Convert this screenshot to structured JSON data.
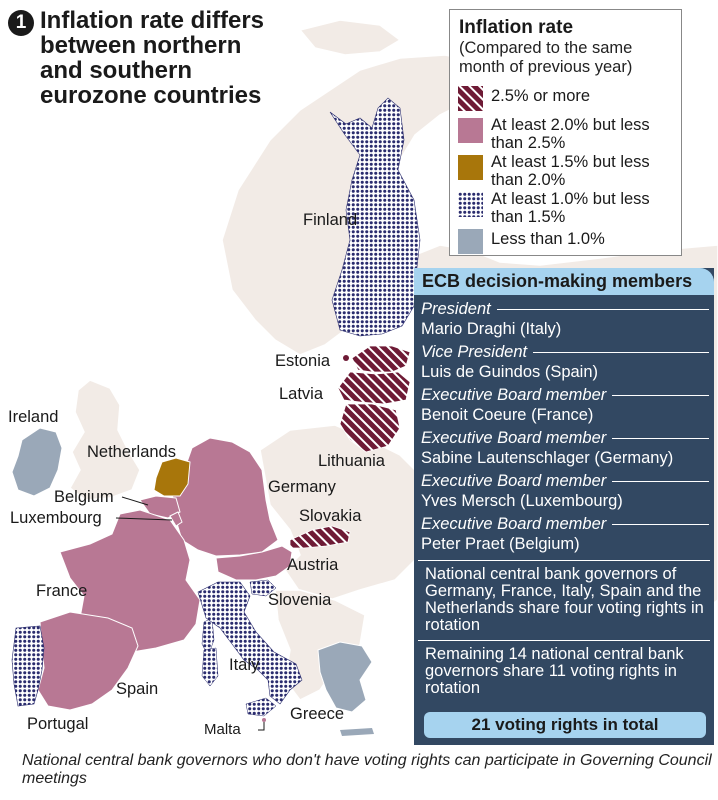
{
  "title": {
    "number": "1",
    "line1": "Inflation rate differs",
    "line2": "between northern",
    "line3": "and southern",
    "line4": "eurozone countries"
  },
  "legend": {
    "title": "Inflation rate",
    "subtitle": "(Compared to the same month of previous year)",
    "items": [
      {
        "label": "2.5% or more",
        "pattern": "diagonal-stripes",
        "color": "#6e1a35"
      },
      {
        "label": "At least 2.0% but less than 2.5%",
        "pattern": "solid",
        "color": "#b87894"
      },
      {
        "label": "At least 1.5% but less than 2.0%",
        "pattern": "solid",
        "color": "#a8760b"
      },
      {
        "label": "At least 1.0% but less than 1.5%",
        "pattern": "dots",
        "color": "#2a2c6e"
      },
      {
        "label": "Less than 1.0%",
        "pattern": "solid",
        "color": "#9aa8b8"
      }
    ]
  },
  "ecb": {
    "header": "ECB decision-making members",
    "members": [
      {
        "role": "President",
        "name": "Mario Draghi (Italy)"
      },
      {
        "role": "Vice President",
        "name": "Luis de Guindos (Spain)"
      },
      {
        "role": "Executive Board member",
        "name": "Benoit Coeure (France)"
      },
      {
        "role": "Executive Board member",
        "name": "Sabine Lautenschlager (Germany)"
      },
      {
        "role": "Executive Board member",
        "name": "Yves Mersch (Luxembourg)"
      },
      {
        "role": "Executive Board member",
        "name": "Peter Praet (Belgium)"
      }
    ],
    "rotation_note": "National central bank governors of Germany, France, Italy, Spain and the Netherlands share four voting rights in rotation",
    "remaining_note": "Remaining 14 national central bank governors share 11 voting rights in rotation",
    "total": "21 voting rights in total"
  },
  "countries": {
    "finland": "Finland",
    "estonia": "Estonia",
    "latvia": "Latvia",
    "lithuania": "Lithuania",
    "ireland": "Ireland",
    "netherlands": "Netherlands",
    "belgium": "Belgium",
    "luxembourg": "Luxembourg",
    "germany": "Germany",
    "slovakia": "Slovakia",
    "austria": "Austria",
    "slovenia": "Slovenia",
    "france": "France",
    "italy": "Italy",
    "spain": "Spain",
    "portugal": "Portugal",
    "malta": "Malta",
    "greece": "Greece"
  },
  "footnote": "National central bank governors who don't have voting rights can participate in Governing Council meetings"
}
